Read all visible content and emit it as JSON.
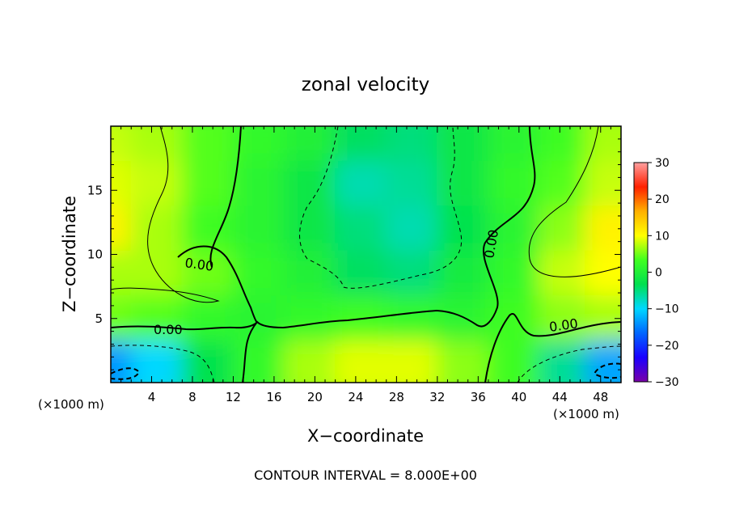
{
  "chart_data": {
    "type": "heatmap",
    "title": "zonal velocity",
    "xlabel": "X−coordinate",
    "ylabel": "Z−coordinate",
    "x_unit_left": "(×1000 m)",
    "x_unit_right": "(×1000 m)",
    "footer": "CONTOUR INTERVAL = 8.000E+00",
    "xlim": [
      0,
      50
    ],
    "ylim": [
      0,
      20
    ],
    "x_ticks": [
      4,
      8,
      12,
      16,
      20,
      24,
      28,
      32,
      36,
      40,
      44,
      48
    ],
    "x_tick_labels": [
      "4",
      "8",
      "12",
      "16",
      "20",
      "24",
      "28",
      "32",
      "36",
      "40",
      "44",
      "48"
    ],
    "y_ticks": [
      5,
      10,
      15
    ],
    "y_tick_labels": [
      "5",
      "10",
      "15"
    ],
    "contour_labels": [
      "0.00",
      "0.00",
      "0.00",
      "0.00"
    ],
    "colorbar": {
      "range": [
        -30,
        30
      ],
      "ticks": [
        30,
        20,
        10,
        0,
        -10,
        -20,
        -30
      ],
      "tick_labels": [
        "30",
        "20",
        "10",
        "0",
        "−10",
        "−20",
        "−30"
      ],
      "colors": [
        "#7a00a8",
        "#1a00ff",
        "#0066ff",
        "#00d8ff",
        "#00e050",
        "#40ff20",
        "#ffff00",
        "#ffb000",
        "#ff2000",
        "#ffa0a0"
      ]
    },
    "sketch_rows_z": [
      19.0,
      15.0,
      11.5,
      8.0,
      4.5,
      1.0
    ],
    "sketch_cols_x": [
      0.5,
      5,
      10,
      15,
      20,
      25,
      30,
      35,
      40,
      45,
      49.5
    ],
    "sketch_values": [
      [
        8,
        7,
        4,
        2,
        0,
        -4,
        -5,
        -2,
        1,
        3,
        7
      ],
      [
        9,
        8,
        4,
        1,
        -2,
        -7,
        -6,
        -2,
        2,
        4,
        8
      ],
      [
        11,
        7,
        3,
        1,
        -2,
        -5,
        -7,
        -3,
        1,
        6,
        11
      ],
      [
        7,
        7,
        5,
        2,
        0,
        -4,
        -5,
        -1,
        2,
        8,
        10
      ],
      [
        5,
        4,
        2,
        1,
        2,
        3,
        2,
        1,
        3,
        6,
        7
      ],
      [
        -14,
        -10,
        -3,
        2,
        7,
        9,
        9,
        6,
        3,
        -6,
        -13
      ]
    ]
  }
}
